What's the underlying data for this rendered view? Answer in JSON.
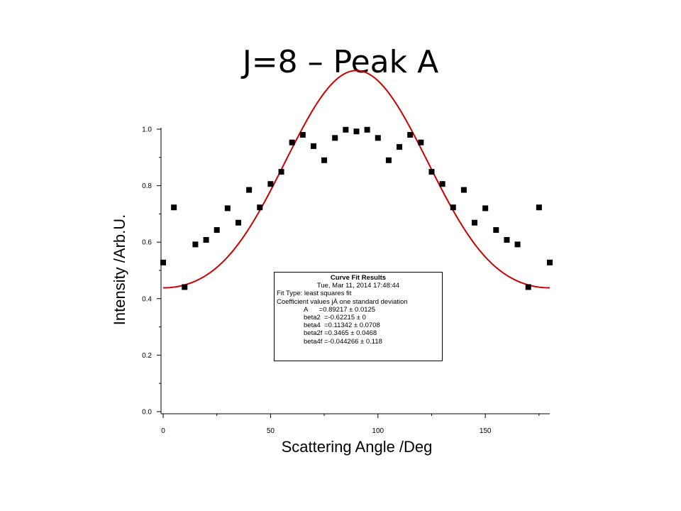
{
  "slide": {
    "title": "J=8 – Peak A"
  },
  "chart_data": {
    "type": "scatter",
    "xlabel": "Scattering Angle /Deg",
    "ylabel": "Intensity /Arb.U.",
    "xlim": [
      0,
      180
    ],
    "ylim": [
      0.0,
      1.0
    ],
    "xticks": [
      0,
      50,
      100,
      150
    ],
    "xtick_labels": [
      "0",
      "50",
      "100",
      "150"
    ],
    "yticks": [
      0.0,
      0.2,
      0.4,
      0.6,
      0.8,
      1.0
    ],
    "ytick_labels": [
      "0.0",
      "0.2",
      "0.4",
      "0.6",
      "0.8",
      "1.0"
    ],
    "grid": false,
    "series": [
      {
        "marker": "square",
        "color": "#000000",
        "x": [
          0,
          5,
          10,
          15,
          20,
          25,
          30,
          35,
          40,
          45,
          50,
          55,
          60,
          65,
          70,
          75,
          80,
          85,
          90,
          95,
          100,
          105,
          110,
          115,
          120,
          125,
          130,
          135,
          140,
          145,
          150,
          155,
          160,
          165,
          170,
          175,
          180
        ],
        "y": [
          0.528,
          0.723,
          0.441,
          0.592,
          0.608,
          0.643,
          0.72,
          0.669,
          0.785,
          0.723,
          0.806,
          0.849,
          0.953,
          0.98,
          0.94,
          0.89,
          0.969,
          0.998,
          0.992,
          0.998,
          0.969,
          0.89,
          0.937,
          0.98,
          0.953,
          0.849,
          0.806,
          0.723,
          0.785,
          0.669,
          0.72,
          0.643,
          0.608,
          0.592,
          0.441,
          0.723,
          0.528
        ]
      },
      {
        "type": "line",
        "color": "#cc0000",
        "fit": {
          "A": 0.89217,
          "beta2": -0.62215,
          "beta4": 0.11342
        }
      }
    ],
    "annotation": {
      "title": "Curve Fit Results",
      "date": "Tue, Mar 11, 2014 17:48:44",
      "fit_type": "Fit Type: least squares fit",
      "coef_header": "Coefficient values jÀ one standard deviation",
      "coefficients": [
        "A      =0.89217 ± 0.0125",
        "beta2  =-0.62215 ± 0",
        "beta4  =0.11342 ± 0.0708",
        "beta2f =0.3465 ± 0.0468",
        "beta4f =-0.044266 ± 0.118"
      ]
    }
  }
}
